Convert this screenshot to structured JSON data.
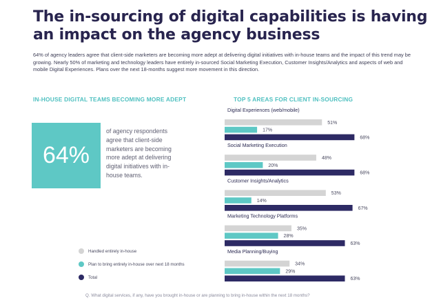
{
  "title": "The in-sourcing of digital capabilities is having an impact on the agency business",
  "intro": "64% of agency leaders agree that client-side marketers are becoming more adept at delivering digital initiatives with in-house teams and the impact of this trend may be growing. Nearly 50% of marketing and technology leaders have entirely in-sourced Social Marketing Execution, Customer Insights/Analytics and aspects of web and mobile Digital Experiences. Plans over the next 18-months suggest more movement in this direction.",
  "left_section": {
    "heading": "IN-HOUSE DIGITAL TEAMS BECOMING MORE ADEPT",
    "stat_value": "64%",
    "stat_text": "of agency respondents agree that client-side marketers are becoming more adept at delivering digital initiatives with in-house teams."
  },
  "right_section": {
    "heading": "TOP 5 AREAS FOR CLIENT IN-SOURCING"
  },
  "legend": [
    {
      "label": "Handled entirely in-house",
      "color": "#d4d4d4"
    },
    {
      "label": "Plan to bring entirely in-house over next 18 months",
      "color": "#5ec8c5"
    },
    {
      "label": "Total",
      "color": "#2d2a64"
    }
  ],
  "footnote": "Q. What digital services, if any, have you brought in-house or are planning to bring in-house within the next 18 months?",
  "chart_data": {
    "type": "bar",
    "orientation": "horizontal",
    "title": "TOP 5 AREAS FOR CLIENT IN-SOURCING",
    "categories": [
      "Digital Experiences (web/mobile)",
      "Social Marketing Execution",
      "Customer Insights/Analytics",
      "Marketing Technology Platforms",
      "Media Planning/Buying"
    ],
    "value_suffix": "%",
    "xlim": [
      0,
      70
    ],
    "grid": false,
    "series": [
      {
        "name": "Handled entirely in-house",
        "color": "#d4d4d4",
        "values": [
          51,
          48,
          53,
          35,
          34
        ]
      },
      {
        "name": "Plan to bring entirely in-house over next 18 months",
        "color": "#5ec8c5",
        "values": [
          17,
          20,
          14,
          28,
          29
        ]
      },
      {
        "name": "Total",
        "color": "#2d2a64",
        "values": [
          68,
          68,
          67,
          63,
          63
        ]
      }
    ]
  }
}
